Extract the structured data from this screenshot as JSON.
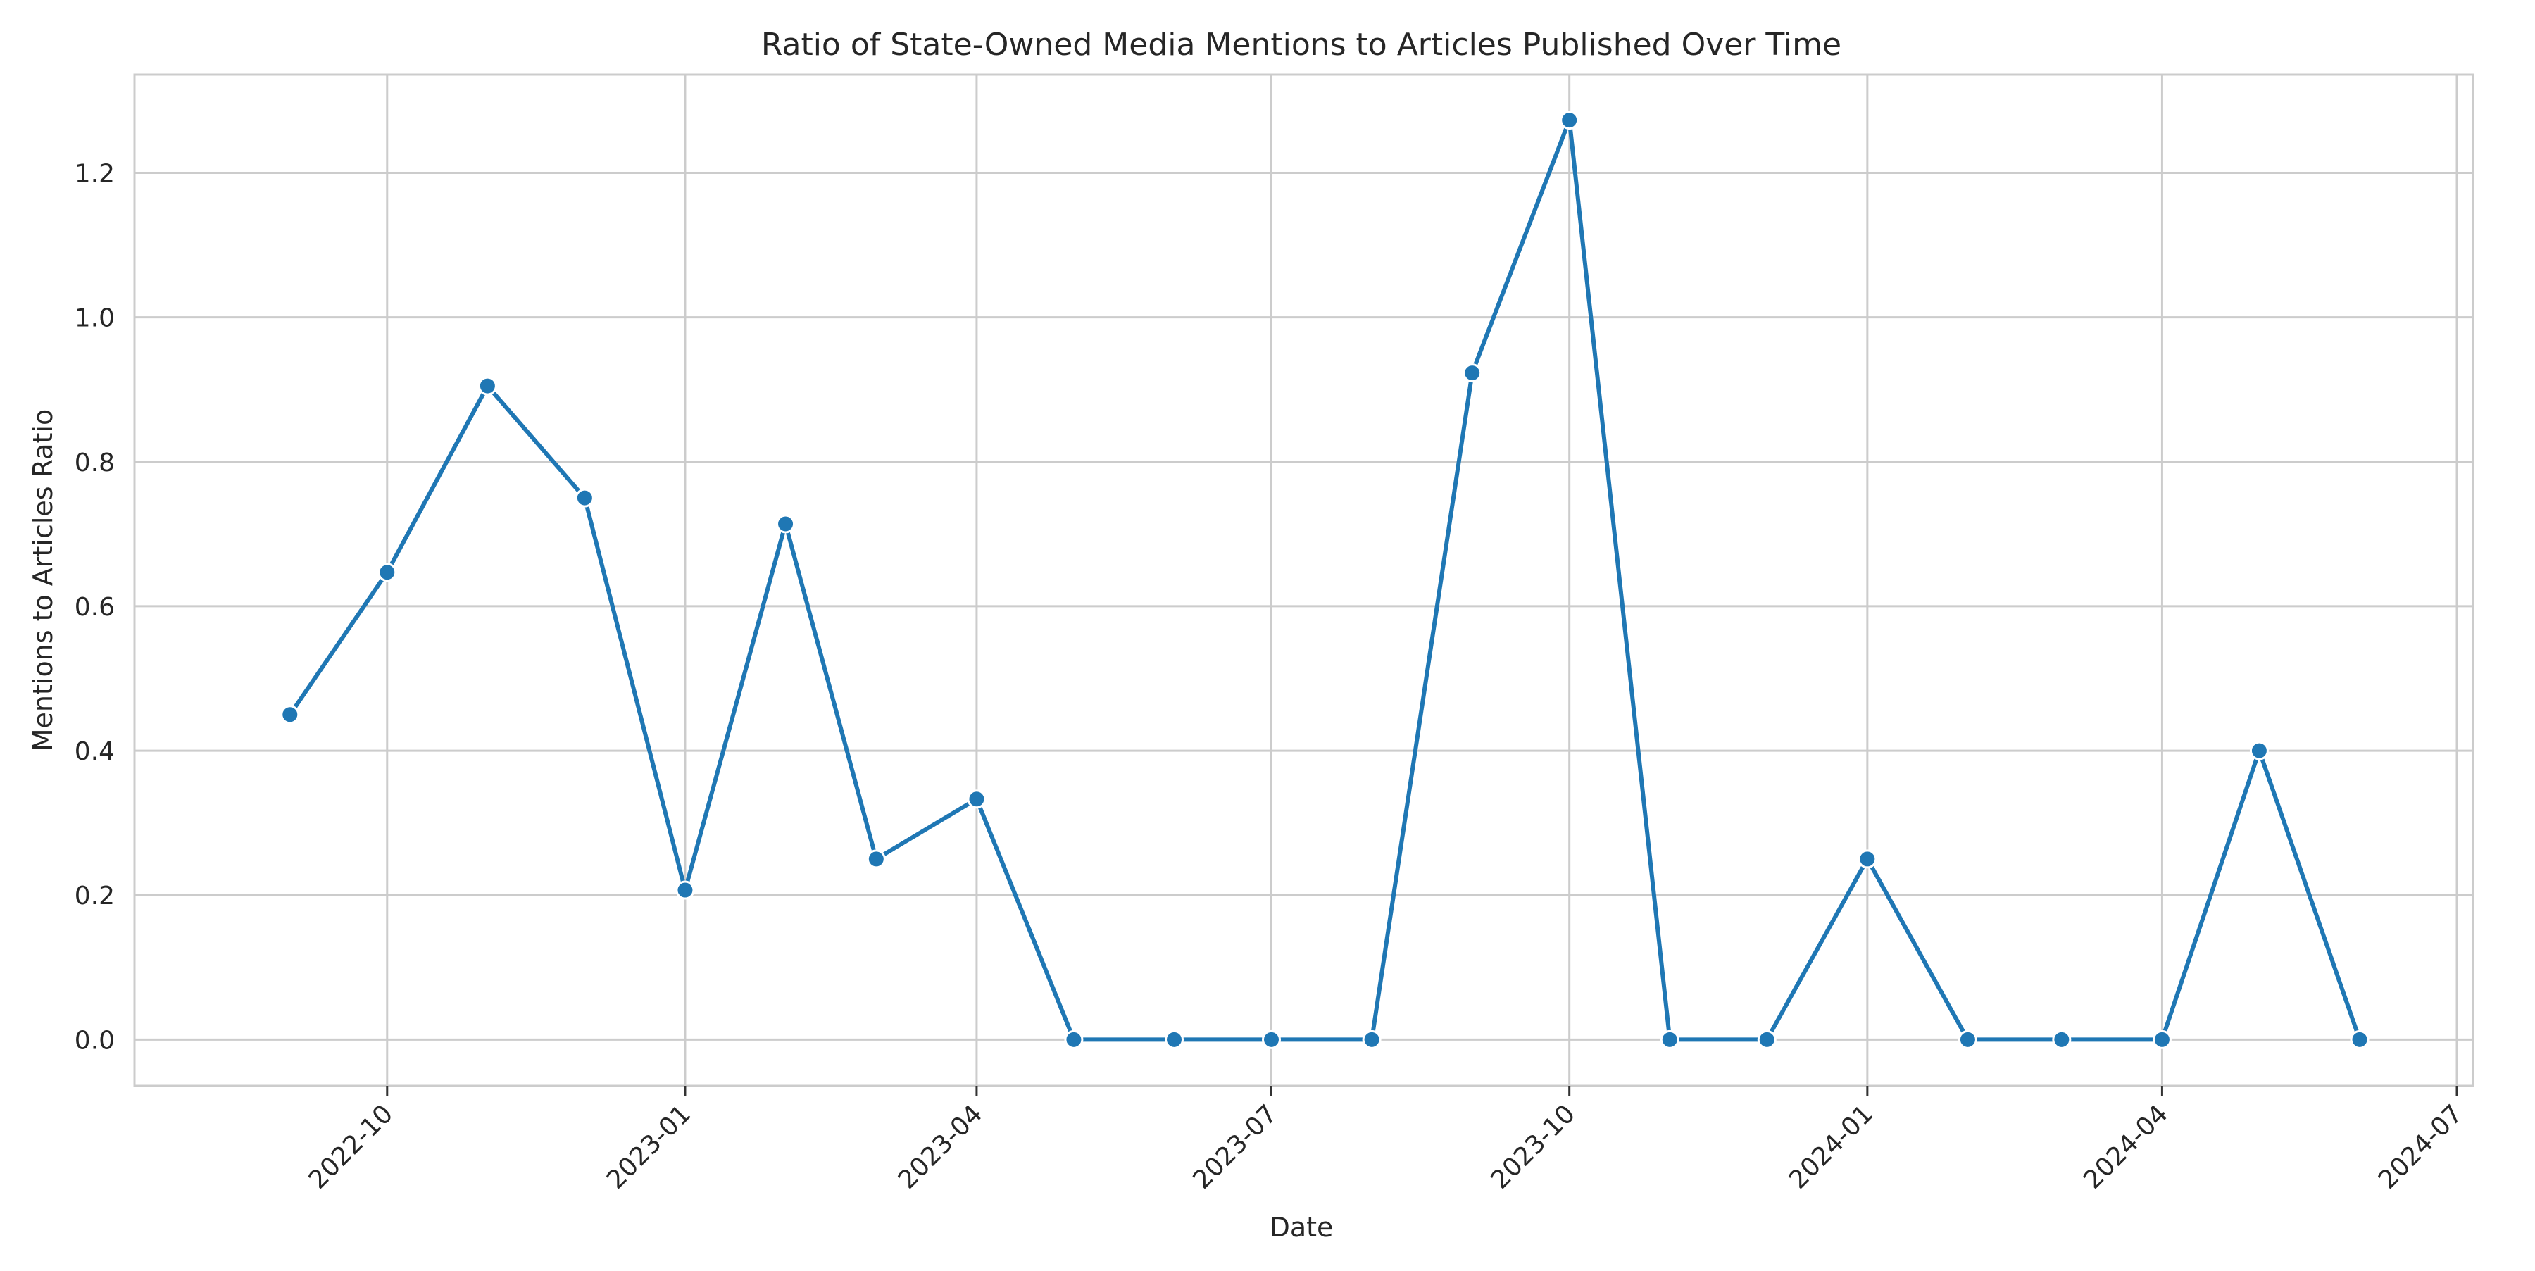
{
  "chart_data": {
    "type": "line",
    "title": "Ratio of State-Owned Media Mentions to Articles Published Over Time",
    "xlabel": "Date",
    "ylabel": "Mentions to Articles Ratio",
    "x_tick_labels": [
      "2022-10",
      "2023-01",
      "2023-04",
      "2023-07",
      "2023-10",
      "2024-01",
      "2024-04",
      "2024-07"
    ],
    "y_tick_labels": [
      "0.0",
      "0.2",
      "0.4",
      "0.6",
      "0.8",
      "1.0",
      "1.2"
    ],
    "ylim": [
      -0.064,
      1.336
    ],
    "xlim": [
      "2022-07-15",
      "2024-07-06"
    ],
    "grid": true,
    "color": "#1f77b4",
    "series": [
      {
        "x": [
          "2022-09",
          "2022-10",
          "2022-11",
          "2022-12",
          "2023-01",
          "2023-02",
          "2023-03",
          "2023-04",
          "2023-05",
          "2023-06",
          "2023-07",
          "2023-08",
          "2023-09",
          "2023-10",
          "2023-11",
          "2023-12",
          "2024-01",
          "2024-02",
          "2024-03",
          "2024-04",
          "2024-05",
          "2024-06"
        ],
        "values": [
          0.45,
          0.647,
          0.905,
          0.75,
          0.207,
          0.714,
          0.25,
          0.333,
          0.0,
          0.0,
          0.0,
          0.0,
          0.923,
          1.273,
          0.0,
          0.0,
          0.25,
          0.0,
          0.0,
          0.0,
          0.4,
          0.0
        ]
      }
    ]
  }
}
